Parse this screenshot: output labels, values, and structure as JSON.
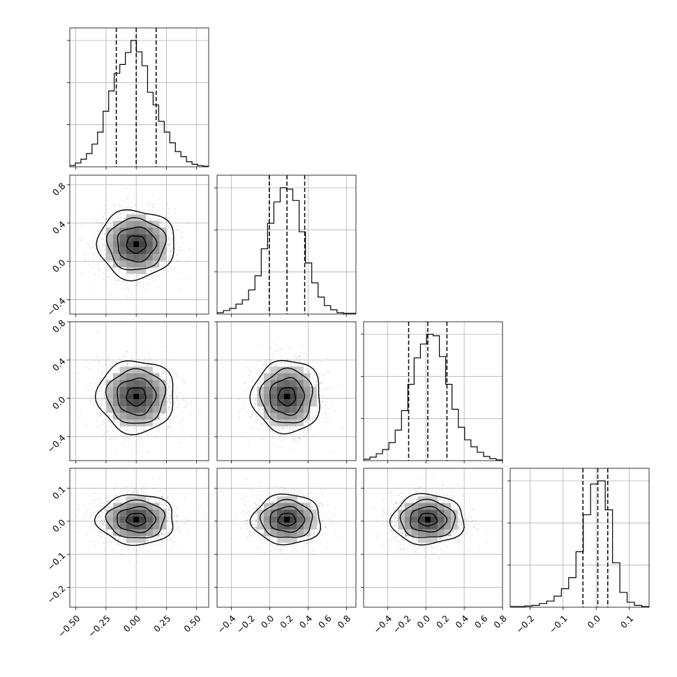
{
  "chart_data": {
    "type": "corner",
    "variables": [
      {
        "median": 0.0,
        "q16": -0.165,
        "q84": 0.165,
        "range": [
          -0.55,
          0.6
        ],
        "sigma": 0.16,
        "ticks": [
          -0.5,
          -0.25,
          0.0,
          0.25,
          0.5
        ],
        "tick_labels": [
          "−0.50",
          "−0.25",
          "0.00",
          "0.25",
          "0.50"
        ],
        "hist_values": [
          2,
          6,
          12,
          21,
          36,
          55,
          88,
          120,
          148,
          162,
          181,
          200,
          182,
          160,
          118,
          98,
          72,
          55,
          38,
          24,
          16,
          8,
          4,
          2,
          1
        ]
      },
      {
        "median": 0.18,
        "q16": -0.005,
        "q84": 0.365,
        "range": [
          -0.55,
          0.9
        ],
        "sigma": 0.18,
        "ticks": [
          -0.4,
          0.0,
          0.4,
          0.8
        ],
        "tick_labels": [
          "−0.4",
          "0.0",
          "0.4",
          "0.8"
        ],
        "x_ticks": [
          -0.4,
          -0.2,
          0.0,
          0.2,
          0.4,
          0.6,
          0.8
        ],
        "x_tick_labels": [
          "−0.4",
          "−0.2",
          "0.0",
          "0.2",
          "0.4",
          "0.6",
          "0.8"
        ],
        "hist_values": [
          2,
          5,
          8,
          14,
          20,
          34,
          54,
          92,
          128,
          158,
          178,
          176,
          160,
          116,
          72,
          44,
          24,
          12,
          6,
          2,
          1,
          1
        ]
      },
      {
        "median": 0.02,
        "q16": -0.18,
        "q84": 0.22,
        "range": [
          -0.65,
          0.8
        ],
        "sigma": 0.19,
        "ticks": [
          -0.4,
          0.0,
          0.4,
          0.8
        ],
        "tick_labels": [
          "−0.4",
          "0.0",
          "0.4",
          "0.8"
        ],
        "x_ticks": [
          -0.4,
          -0.2,
          0.0,
          0.2,
          0.4,
          0.6,
          0.8
        ],
        "x_tick_labels": [
          "−0.4",
          "−0.2",
          "0.0",
          "0.2",
          "0.4",
          "0.6",
          "0.8"
        ],
        "hist_values": [
          2,
          5,
          10,
          16,
          26,
          44,
          72,
          110,
          148,
          168,
          182,
          180,
          150,
          110,
          74,
          48,
          30,
          20,
          12,
          6,
          3,
          1
        ]
      },
      {
        "median": 0.005,
        "q16": -0.04,
        "q84": 0.035,
        "range": [
          -0.26,
          0.16
        ],
        "sigma": 0.038,
        "ticks": [
          -0.2,
          -0.1,
          0.0,
          0.1
        ],
        "tick_labels": [
          "−0.2",
          "−0.1",
          "0.0",
          "0.1"
        ],
        "hist_values": [
          1,
          1,
          2,
          3,
          6,
          10,
          18,
          30,
          48,
          90,
          150,
          200,
          205,
          158,
          72,
          24,
          8,
          3,
          1
        ]
      }
    ]
  }
}
